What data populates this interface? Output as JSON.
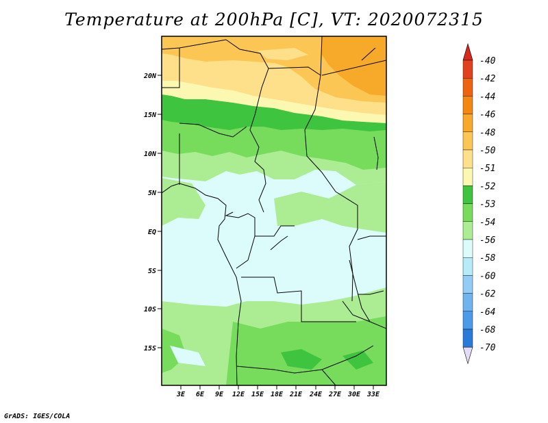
{
  "title": "Temperature at 200hPa [C], VT: 2020072315",
  "credit": "GrADS: IGES/COLA",
  "map": {
    "lat_labels": [
      "20N",
      "15N",
      "10N",
      "5N",
      "EQ",
      "5S",
      "10S",
      "15S"
    ],
    "lon_labels": [
      "3E",
      "6E",
      "9E",
      "12E",
      "15E",
      "18E",
      "21E",
      "24E",
      "27E",
      "30E",
      "33E"
    ]
  },
  "colorbar": {
    "labels": [
      "-40",
      "-42",
      "-44",
      "-46",
      "-48",
      "-50",
      "-51",
      "-52",
      "-53",
      "-54",
      "-56",
      "-58",
      "-60",
      "-62",
      "-64",
      "-68",
      "-70"
    ],
    "colors": [
      "#e0411f",
      "#ec6412",
      "#f4870f",
      "#f7a929",
      "#fbc654",
      "#fde089",
      "#fdf8b1",
      "#3fc43f",
      "#77dc5c",
      "#acec92",
      "#dcfcfc",
      "#b5ecf8",
      "#93ccf4",
      "#6fb4ee",
      "#4b9bea",
      "#2a7bd8",
      "#1459c0",
      "#0a3aa0",
      "#090a7a",
      "#e4dcf4"
    ],
    "top_arrow_color": "#d7281f",
    "bottom_arrow_color": "#e4dcf4"
  },
  "colors": {
    "pale_cyan": "#dcfcfc",
    "light_green": "#acec92",
    "mid_green": "#77dc5c",
    "dark_green": "#3fc43f",
    "pale_yellow": "#fde089",
    "yellow_orange": "#fbc654",
    "orange": "#f7a929"
  }
}
